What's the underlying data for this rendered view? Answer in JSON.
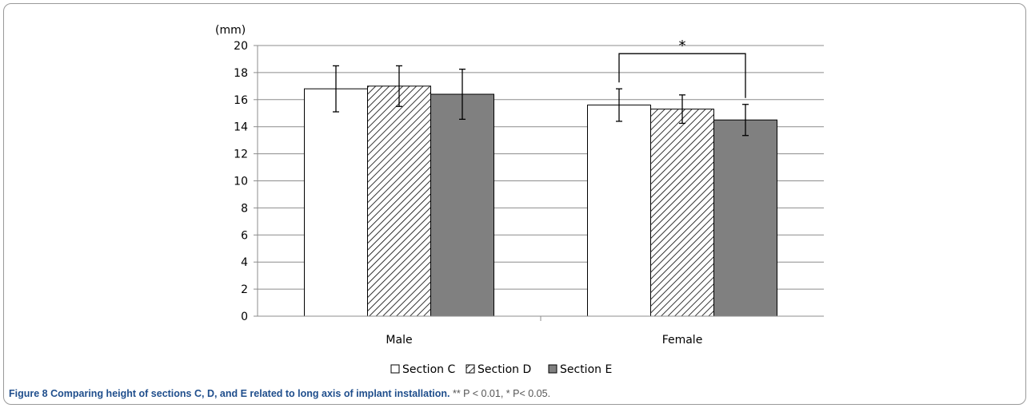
{
  "chart_data": {
    "type": "bar",
    "categories": [
      "Male",
      "Female"
    ],
    "series": [
      {
        "name": "Section C",
        "values": [
          16.8,
          15.6
        ],
        "errors": [
          1.7,
          1.2
        ],
        "fill": "#ffffff",
        "pattern": "none"
      },
      {
        "name": "Section D",
        "values": [
          17.0,
          15.3
        ],
        "errors": [
          1.5,
          1.05
        ],
        "fill": "#ffffff",
        "pattern": "diagonal-hatch"
      },
      {
        "name": "Section E",
        "values": [
          16.4,
          14.5
        ],
        "errors": [
          1.85,
          1.15
        ],
        "fill": "#808080",
        "pattern": "none"
      }
    ],
    "ylabel": "(mm)",
    "ylim": [
      0,
      20
    ],
    "yticks": [
      "0",
      "2",
      "4",
      "6",
      "8",
      "10",
      "12",
      "14",
      "16",
      "18",
      "20"
    ],
    "grid": true,
    "legend": "bottom-center",
    "annotations": [
      {
        "text": "*",
        "from_category": "Female",
        "from_series": "Section C",
        "to_series": "Section E",
        "bracket_top": 19.4
      }
    ]
  },
  "caption": {
    "label": "Figure 8",
    "title": "Comparing height of sections C, D, and E related to long axis of implant installation.",
    "note": "** P < 0.01, * P< 0.05."
  }
}
